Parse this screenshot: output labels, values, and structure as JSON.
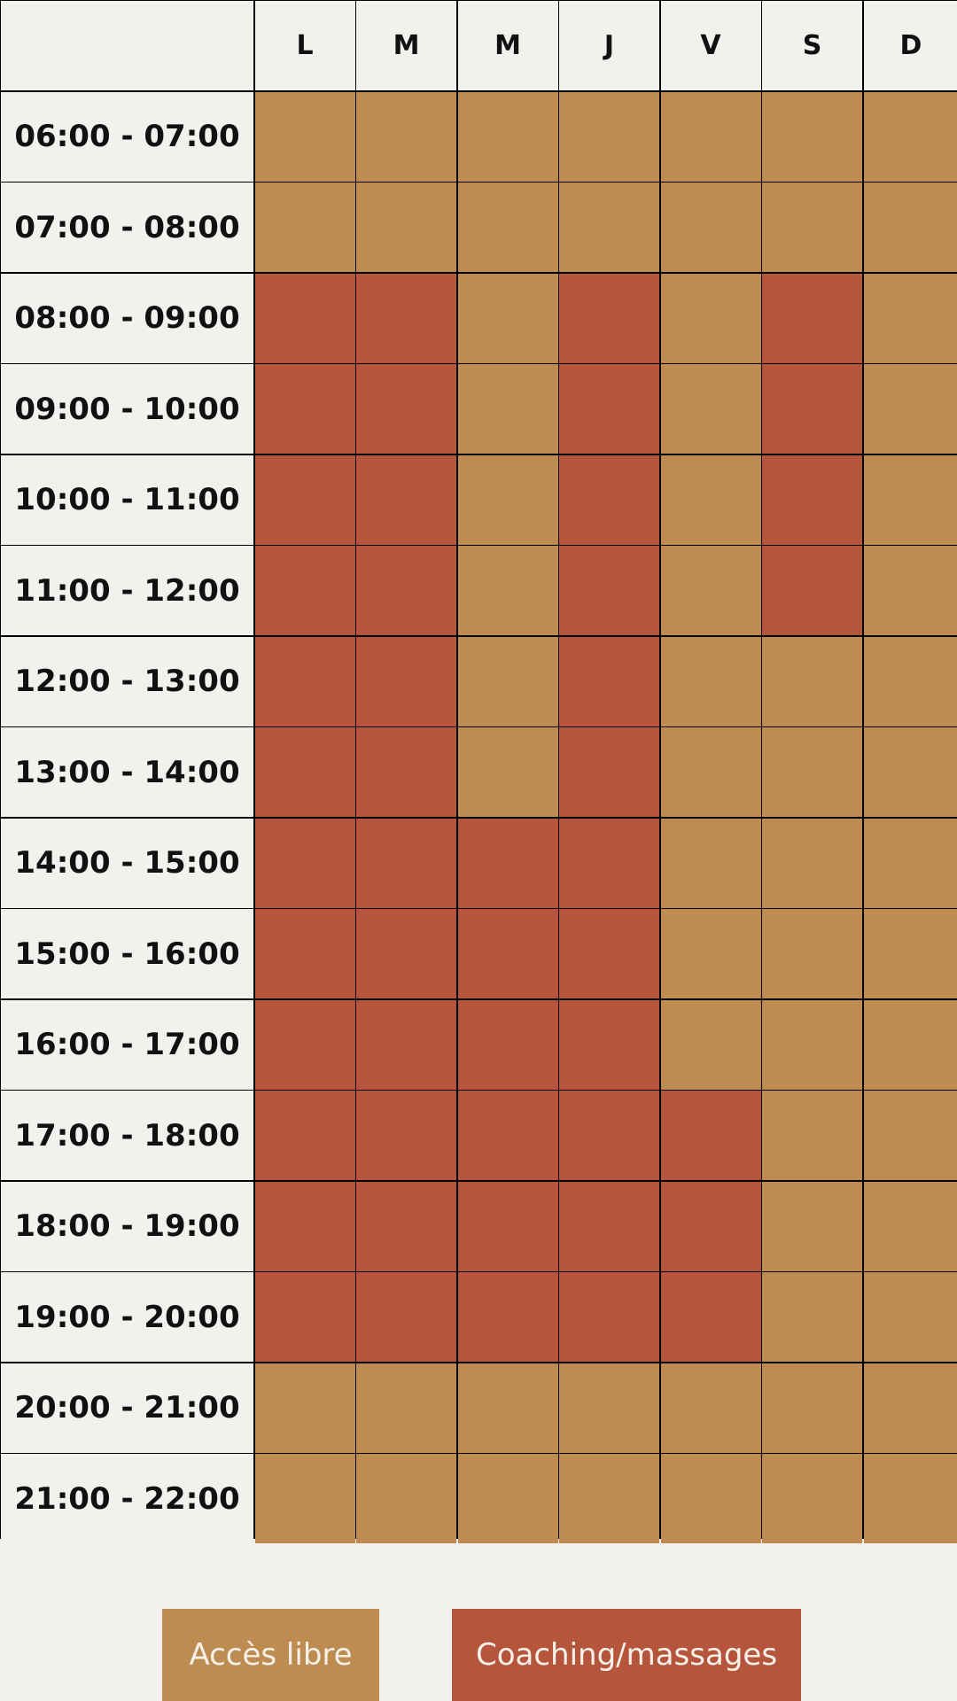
{
  "days": [
    "L",
    "M",
    "M",
    "J",
    "V",
    "S",
    "D"
  ],
  "slots": [
    {
      "time": "06:00 - 07:00",
      "cells": [
        "open",
        "open",
        "open",
        "open",
        "open",
        "open",
        "open"
      ]
    },
    {
      "time": "07:00 - 08:00",
      "cells": [
        "open",
        "open",
        "open",
        "open",
        "open",
        "open",
        "open"
      ]
    },
    {
      "time": "08:00 - 09:00",
      "cells": [
        "coach",
        "coach",
        "open",
        "coach",
        "open",
        "coach",
        "open"
      ]
    },
    {
      "time": "09:00 - 10:00",
      "cells": [
        "coach",
        "coach",
        "open",
        "coach",
        "open",
        "coach",
        "open"
      ]
    },
    {
      "time": "10:00 - 11:00",
      "cells": [
        "coach",
        "coach",
        "open",
        "coach",
        "open",
        "coach",
        "open"
      ]
    },
    {
      "time": "11:00 - 12:00",
      "cells": [
        "coach",
        "coach",
        "open",
        "coach",
        "open",
        "coach",
        "open"
      ]
    },
    {
      "time": "12:00 - 13:00",
      "cells": [
        "coach",
        "coach",
        "open",
        "coach",
        "open",
        "open",
        "open"
      ]
    },
    {
      "time": "13:00 - 14:00",
      "cells": [
        "coach",
        "coach",
        "open",
        "coach",
        "open",
        "open",
        "open"
      ]
    },
    {
      "time": "14:00 - 15:00",
      "cells": [
        "coach",
        "coach",
        "coach",
        "coach",
        "open",
        "open",
        "open"
      ]
    },
    {
      "time": "15:00 - 16:00",
      "cells": [
        "coach",
        "coach",
        "coach",
        "coach",
        "open",
        "open",
        "open"
      ]
    },
    {
      "time": "16:00 - 17:00",
      "cells": [
        "coach",
        "coach",
        "coach",
        "coach",
        "open",
        "open",
        "open"
      ]
    },
    {
      "time": "17:00 - 18:00",
      "cells": [
        "coach",
        "coach",
        "coach",
        "coach",
        "coach",
        "open",
        "open"
      ]
    },
    {
      "time": "18:00 - 19:00",
      "cells": [
        "coach",
        "coach",
        "coach",
        "coach",
        "coach",
        "open",
        "open"
      ]
    },
    {
      "time": "19:00 - 20:00",
      "cells": [
        "coach",
        "coach",
        "coach",
        "coach",
        "coach",
        "open",
        "open"
      ]
    },
    {
      "time": "20:00 - 21:00",
      "cells": [
        "open",
        "open",
        "open",
        "open",
        "open",
        "open",
        "open"
      ]
    },
    {
      "time": "21:00 - 22:00",
      "cells": [
        "open",
        "open",
        "open",
        "open",
        "open",
        "open",
        "open"
      ]
    }
  ],
  "legend": {
    "open_label": "Accès libre",
    "coach_label": "Coaching/massages"
  },
  "colors": {
    "open": "#be8b51",
    "coach": "#b5553c",
    "background": "#f2f1ee",
    "grid_line": "#000000"
  }
}
